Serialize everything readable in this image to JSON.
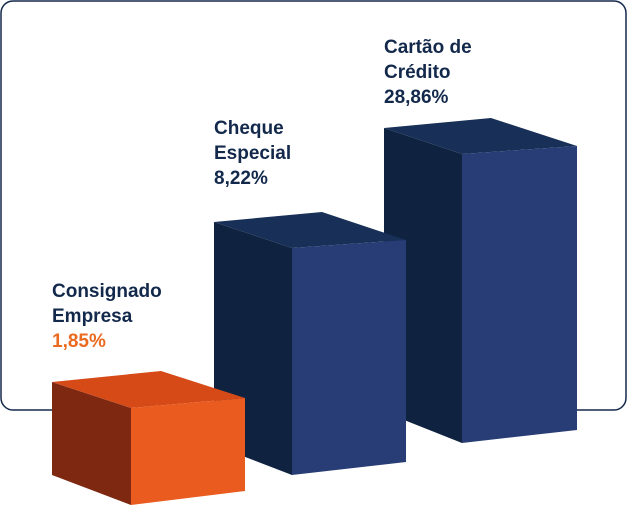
{
  "chart_data": {
    "type": "bar",
    "title": "",
    "categories": [
      "Consignado Empresa",
      "Cheque Especial",
      "Cartão de Crédito"
    ],
    "values": [
      1.85,
      8.22,
      28.86
    ],
    "value_labels": [
      "1,85%",
      "8,22%",
      "28,86%"
    ],
    "label_lines": [
      [
        "Consignado",
        "Empresa"
      ],
      [
        "Cheque",
        "Especial"
      ],
      [
        "Cartão de",
        "Crédito"
      ]
    ],
    "style": "3d-box",
    "colors": {
      "highlight_front": "#ea5b20",
      "highlight_top": "#d64a17",
      "highlight_side": "#7e2811",
      "bar_front": "#283d75",
      "bar_top": "#183057",
      "bar_side": "#0f2240",
      "text": "#13294b",
      "highlight_text": "#ea6a1f"
    }
  }
}
